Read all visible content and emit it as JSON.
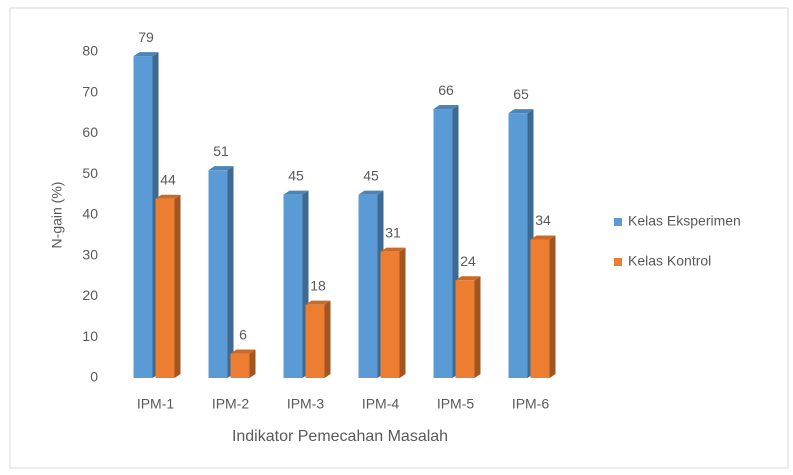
{
  "chart_data": {
    "type": "bar3d",
    "categories": [
      "IPM-1",
      "IPM-2",
      "IPM-3",
      "IPM-4",
      "IPM-5",
      "IPM-6"
    ],
    "series": [
      {
        "name": "Kelas Eksperimen",
        "color": "#5b9bd5",
        "values": [
          79,
          51,
          45,
          45,
          66,
          65
        ]
      },
      {
        "name": "Kelas Kontrol",
        "color": "#ed7d31",
        "values": [
          44,
          6,
          18,
          31,
          24,
          34
        ]
      }
    ],
    "ylim": [
      0,
      80
    ],
    "yticks": [
      0,
      10,
      20,
      30,
      40,
      50,
      60,
      70,
      80
    ],
    "ylabel": "N-gain (%)",
    "xlabel": "Indikator Pemecahan Masalah",
    "grid": false,
    "legend": "right"
  }
}
